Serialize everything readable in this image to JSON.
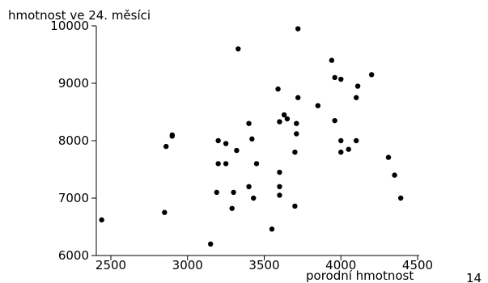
{
  "chart_data": {
    "type": "scatter",
    "title": "",
    "xlabel": "porodní hmotnost",
    "ylabel": "hmotnost ve 24. měsíci",
    "xlim": [
      2400,
      4500
    ],
    "ylim": [
      6000,
      10000
    ],
    "xticks": [
      2500,
      3000,
      3500,
      4000,
      4500
    ],
    "yticks": [
      6000,
      7000,
      8000,
      9000,
      10000
    ],
    "grid": false,
    "legend": "none",
    "colors": {
      "marker": "#000000",
      "axis": "#000000"
    },
    "points": [
      {
        "x": 2440,
        "y": 6620
      },
      {
        "x": 2850,
        "y": 6750
      },
      {
        "x": 2860,
        "y": 7900
      },
      {
        "x": 2900,
        "y": 8080
      },
      {
        "x": 2900,
        "y": 8100
      },
      {
        "x": 3150,
        "y": 6200
      },
      {
        "x": 3190,
        "y": 7100
      },
      {
        "x": 3200,
        "y": 7600
      },
      {
        "x": 3200,
        "y": 8000
      },
      {
        "x": 3250,
        "y": 7600
      },
      {
        "x": 3250,
        "y": 7950
      },
      {
        "x": 3290,
        "y": 6820
      },
      {
        "x": 3300,
        "y": 7100
      },
      {
        "x": 3320,
        "y": 7830
      },
      {
        "x": 3330,
        "y": 9600
      },
      {
        "x": 3400,
        "y": 7200
      },
      {
        "x": 3400,
        "y": 8300
      },
      {
        "x": 3420,
        "y": 8030
      },
      {
        "x": 3430,
        "y": 7000
      },
      {
        "x": 3450,
        "y": 7600
      },
      {
        "x": 3550,
        "y": 6460
      },
      {
        "x": 3590,
        "y": 8900
      },
      {
        "x": 3600,
        "y": 7450
      },
      {
        "x": 3600,
        "y": 7200
      },
      {
        "x": 3600,
        "y": 7050
      },
      {
        "x": 3600,
        "y": 8330
      },
      {
        "x": 3630,
        "y": 8450
      },
      {
        "x": 3650,
        "y": 8380
      },
      {
        "x": 3700,
        "y": 7800
      },
      {
        "x": 3700,
        "y": 6860
      },
      {
        "x": 3710,
        "y": 8300
      },
      {
        "x": 3710,
        "y": 8120
      },
      {
        "x": 3720,
        "y": 9950
      },
      {
        "x": 3720,
        "y": 8750
      },
      {
        "x": 3850,
        "y": 8610
      },
      {
        "x": 3940,
        "y": 9400
      },
      {
        "x": 3960,
        "y": 9100
      },
      {
        "x": 3960,
        "y": 8350
      },
      {
        "x": 4000,
        "y": 9070
      },
      {
        "x": 4000,
        "y": 8000
      },
      {
        "x": 4000,
        "y": 7800
      },
      {
        "x": 4050,
        "y": 7850
      },
      {
        "x": 4100,
        "y": 8750
      },
      {
        "x": 4100,
        "y": 8000
      },
      {
        "x": 4110,
        "y": 8950
      },
      {
        "x": 4200,
        "y": 9150
      },
      {
        "x": 4310,
        "y": 7710
      },
      {
        "x": 4350,
        "y": 7400
      },
      {
        "x": 4390,
        "y": 7000
      }
    ]
  },
  "page": {
    "number": "14"
  }
}
